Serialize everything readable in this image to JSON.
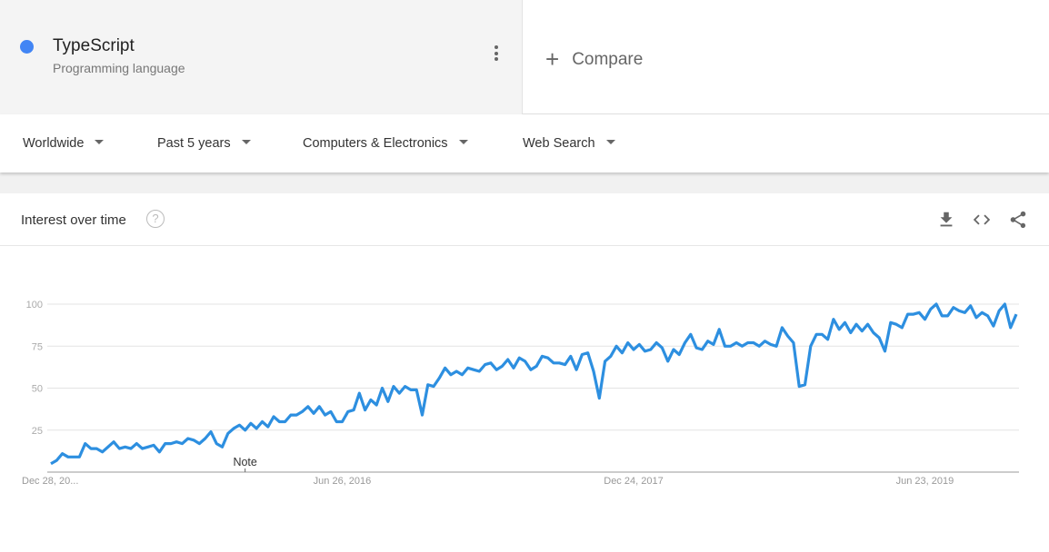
{
  "term": {
    "name": "TypeScript",
    "category": "Programming language",
    "color": "#4285f4",
    "menu_icon": "more-vert-icon"
  },
  "compare": {
    "label": "Compare",
    "icon": "plus-icon"
  },
  "filters": [
    {
      "label": "Worldwide"
    },
    {
      "label": "Past 5 years"
    },
    {
      "label": "Computers & Electronics"
    },
    {
      "label": "Web Search"
    }
  ],
  "card": {
    "title": "Interest over time",
    "help_icon": "?",
    "actions": [
      "download-icon",
      "embed-code-icon",
      "share-icon"
    ]
  },
  "chart_data": {
    "type": "line",
    "title": "",
    "ylim": [
      0,
      100
    ],
    "yticks": [
      25,
      50,
      75,
      100
    ],
    "xtick_labels": [
      "Dec 28, 20...",
      "Jun 26, 2016",
      "Dec 24, 2017",
      "Jun 23, 2019"
    ],
    "annotation": "Note",
    "grid": true,
    "line_color": "#2d8fe0",
    "values": [
      5,
      7,
      11,
      9,
      9,
      9,
      17,
      14,
      14,
      12,
      15,
      18,
      14,
      15,
      14,
      17,
      14,
      15,
      16,
      12,
      17,
      17,
      18,
      17,
      20,
      19,
      17,
      20,
      24,
      17,
      15,
      23,
      26,
      28,
      25,
      29,
      26,
      30,
      27,
      33,
      30,
      30,
      34,
      34,
      36,
      39,
      35,
      39,
      34,
      36,
      30,
      30,
      36,
      37,
      47,
      37,
      43,
      40,
      50,
      42,
      51,
      47,
      51,
      49,
      49,
      34,
      52,
      51,
      56,
      62,
      58,
      60,
      58,
      62,
      61,
      60,
      64,
      65,
      61,
      63,
      67,
      62,
      68,
      66,
      61,
      63,
      69,
      68,
      65,
      65,
      64,
      69,
      61,
      70,
      71,
      60,
      44,
      66,
      69,
      75,
      71,
      77,
      73,
      76,
      72,
      73,
      77,
      74,
      66,
      73,
      70,
      77,
      82,
      74,
      73,
      78,
      76,
      85,
      75,
      75,
      77,
      75,
      77,
      77,
      75,
      78,
      76,
      75,
      86,
      81,
      77,
      51,
      52,
      75,
      82,
      82,
      79,
      91,
      85,
      89,
      83,
      88,
      84,
      88,
      83,
      80,
      72,
      89,
      88,
      86,
      94,
      94,
      95,
      91,
      97,
      100,
      93,
      93,
      98,
      96,
      95,
      99,
      92,
      95,
      93,
      87,
      96,
      100,
      86,
      94
    ]
  }
}
